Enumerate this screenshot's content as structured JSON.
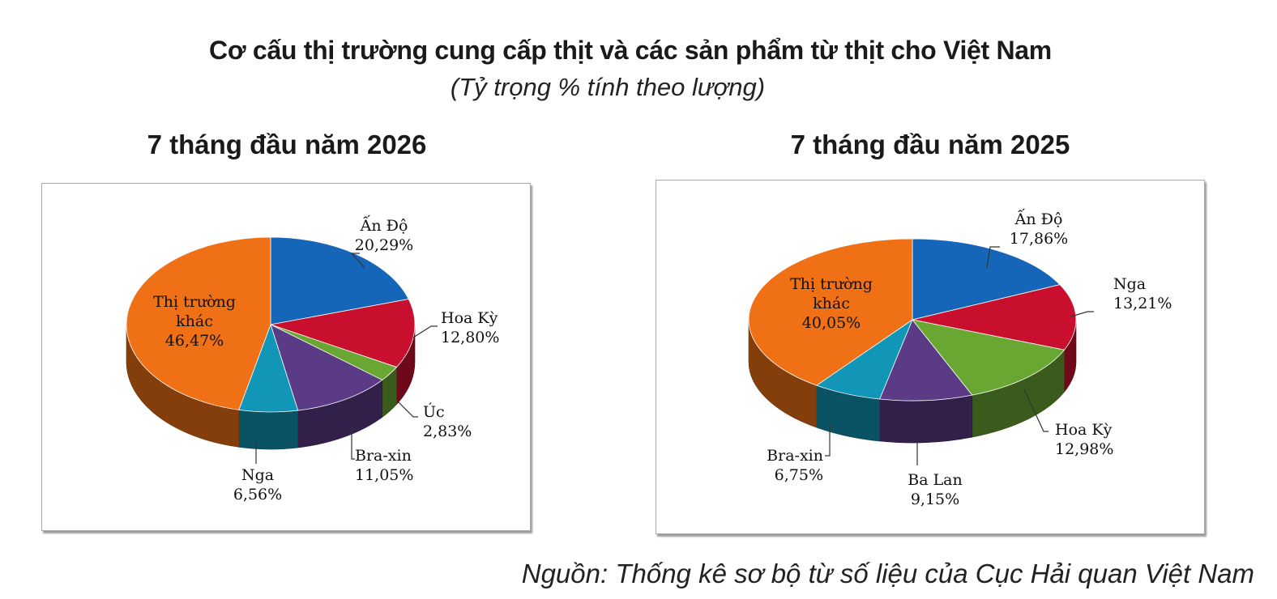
{
  "title": "Cơ cấu thị trường cung cấp thịt và các sản phẩm từ thịt cho Việt Nam",
  "subtitle": "(Tỷ trọng % tính theo lượng)",
  "source": "Nguồn: Thống kê sơ bộ từ số liệu của Cục Hải quan Việt Nam",
  "chart_data": [
    {
      "type": "pie",
      "title": "7 tháng đầu năm 2026",
      "slices": [
        {
          "label": "Ấn Độ",
          "value_text": "20,29%",
          "value": 20.29,
          "color": "#1565b8",
          "label_lines": [
            "Ấn Độ",
            "20,29%"
          ]
        },
        {
          "label": "Hoa Kỳ",
          "value_text": "12,80%",
          "value": 12.8,
          "color": "#c8102e",
          "label_lines": [
            "Hoa Kỳ",
            "12,80%"
          ]
        },
        {
          "label": "Úc",
          "value_text": "2,83%",
          "value": 2.83,
          "color": "#6aa632",
          "label_lines": [
            "Úc",
            "2,83%"
          ]
        },
        {
          "label": "Bra-xin",
          "value_text": "11,05%",
          "value": 11.05,
          "color": "#5b3a86",
          "label_lines": [
            "Bra-xin",
            "11,05%"
          ]
        },
        {
          "label": "Nga",
          "value_text": "6,56%",
          "value": 6.56,
          "color": "#1296b8",
          "label_lines": [
            "Nga",
            "6,56%"
          ]
        },
        {
          "label": "Thị trường khác",
          "value_text": "46,47%",
          "value": 46.47,
          "color": "#f07015",
          "label_lines": [
            "Thị trường",
            "khác",
            "46,47%"
          ]
        }
      ]
    },
    {
      "type": "pie",
      "title": "7 tháng đầu năm 2025",
      "slices": [
        {
          "label": "Ấn Độ",
          "value_text": "17,86%",
          "value": 17.86,
          "color": "#1565b8",
          "label_lines": [
            "Ấn Độ",
            "17,86%"
          ]
        },
        {
          "label": "Nga",
          "value_text": "13,21%",
          "value": 13.21,
          "color": "#c8102e",
          "label_lines": [
            "Nga",
            "13,21%"
          ]
        },
        {
          "label": "Hoa Kỳ",
          "value_text": "12,98%",
          "value": 12.98,
          "color": "#6aa632",
          "label_lines": [
            "Hoa Kỳ",
            "12,98%"
          ]
        },
        {
          "label": "Ba Lan",
          "value_text": "9,15%",
          "value": 9.15,
          "color": "#5b3a86",
          "label_lines": [
            "Ba Lan",
            "9,15%"
          ]
        },
        {
          "label": "Bra-xin",
          "value_text": "6,75%",
          "value": 6.75,
          "color": "#1296b8",
          "label_lines": [
            "Bra-xin",
            "6,75%"
          ]
        },
        {
          "label": "Thị trường khác",
          "value_text": "40,05%",
          "value": 40.05,
          "color": "#f07015",
          "label_lines": [
            "Thị trường",
            "khác",
            "40,05%"
          ]
        }
      ]
    }
  ]
}
